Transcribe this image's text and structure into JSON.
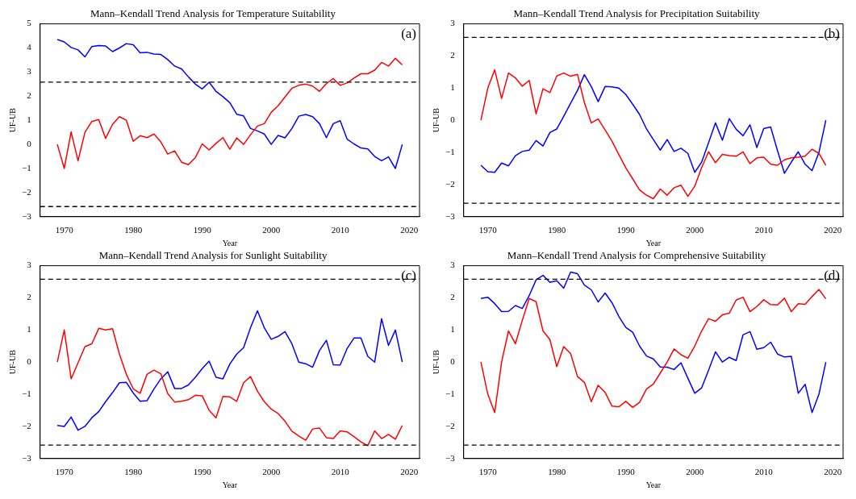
{
  "chart_data": [
    {
      "type": "line",
      "title": "Mann–Kendall Trend Analysis for Temperature Suitability",
      "xlabel": "Year",
      "ylabel": "UF-UB",
      "annotations": [
        "(a)"
      ],
      "grid": false,
      "legend": false,
      "marker": "none",
      "line_style": "solid",
      "x": [
        1969,
        1970,
        1971,
        1972,
        1973,
        1974,
        1975,
        1976,
        1977,
        1978,
        1979,
        1980,
        1981,
        1982,
        1983,
        1984,
        1985,
        1986,
        1987,
        1988,
        1989,
        1990,
        1991,
        1992,
        1993,
        1994,
        1995,
        1996,
        1997,
        1998,
        1999,
        2000,
        2001,
        2002,
        2003,
        2004,
        2005,
        2006,
        2007,
        2008,
        2009,
        2010,
        2011,
        2012,
        2013,
        2014,
        2015,
        2016,
        2017,
        2018,
        2019
      ],
      "xlim": [
        1966.5,
        2021.5
      ],
      "xticks": [
        1970,
        1980,
        1990,
        2000,
        2010,
        2020
      ],
      "ylim": [
        -3,
        5
      ],
      "yticks": [
        -3,
        -2,
        -1,
        0,
        1,
        2,
        3,
        4,
        5
      ],
      "series": [
        {
          "color": "#ff0000",
          "values": [
            0,
            -1,
            0.52,
            -0.68,
            0.5,
            0.95,
            1.03,
            0.25,
            0.83,
            1.15,
            1.0,
            0.13,
            0.36,
            0.28,
            0.43,
            0.1,
            -0.4,
            -0.27,
            -0.74,
            -0.84,
            -0.55,
            0.02,
            -0.23,
            0.04,
            0.28,
            -0.2,
            0.27,
            0,
            0.4,
            0.76,
            0.86,
            1.33,
            1.6,
            1.97,
            2.33,
            2.45,
            2.5,
            2.42,
            2.2,
            2.52,
            2.73,
            2.45,
            2.55,
            2.75,
            2.93,
            2.93,
            3.08,
            3.4,
            3.25,
            3.57,
            3.3
          ]
        },
        {
          "color": "#0000ff",
          "values": [
            4.35,
            4.25,
            4.02,
            3.92,
            3.63,
            4.06,
            4.1,
            4.08,
            3.85,
            4.0,
            4.18,
            4.13,
            3.8,
            3.82,
            3.75,
            3.73,
            3.52,
            3.25,
            3.13,
            2.8,
            2.5,
            2.3,
            2.58,
            2.2,
            1.98,
            1.73,
            1.25,
            1.18,
            0.66,
            0.56,
            0.43,
            0,
            0.37,
            0.27,
            0.66,
            1.17,
            1.24,
            1.15,
            0.86,
            0.28,
            0.86,
            0.98,
            0.22,
            0.02,
            -0.15,
            -0.19,
            -0.5,
            -0.68,
            -0.52,
            -1,
            0
          ]
        }
      ],
      "ref_lines": [
        {
          "axis": "y",
          "value": 2.58,
          "color": "#000000",
          "line_style": "dashed"
        },
        {
          "axis": "y",
          "value": -2.58,
          "color": "#000000",
          "line_style": "dashed"
        }
      ]
    },
    {
      "type": "line",
      "title": "Mann–Kendall Trend Analysis for Precipitation Suitability",
      "xlabel": "Year",
      "ylabel": "UF-UB",
      "annotations": [
        "(b)"
      ],
      "grid": false,
      "legend": false,
      "marker": "none",
      "line_style": "solid",
      "x": [
        1969,
        1970,
        1971,
        1972,
        1973,
        1974,
        1975,
        1976,
        1977,
        1978,
        1979,
        1980,
        1981,
        1982,
        1983,
        1984,
        1985,
        1986,
        1987,
        1988,
        1989,
        1990,
        1991,
        1992,
        1993,
        1994,
        1995,
        1996,
        1997,
        1998,
        1999,
        2000,
        2001,
        2002,
        2003,
        2004,
        2005,
        2006,
        2007,
        2008,
        2009,
        2010,
        2011,
        2012,
        2013,
        2014,
        2015,
        2016,
        2017,
        2018,
        2019
      ],
      "xlim": [
        1966.5,
        2021.5
      ],
      "xticks": [
        1970,
        1980,
        1990,
        2000,
        2010,
        2020
      ],
      "ylim": [
        -3,
        3
      ],
      "yticks": [
        -3,
        -2,
        -1,
        0,
        1,
        2,
        3
      ],
      "series": [
        {
          "color": "#ff0000",
          "values": [
            0,
            1.0,
            1.57,
            0.68,
            1.47,
            1.32,
            1.06,
            1.24,
            0.2,
            0.98,
            0.86,
            1.38,
            1.47,
            1.37,
            1.43,
            0.55,
            -0.08,
            0.04,
            -0.3,
            -0.65,
            -1.07,
            -1.48,
            -1.82,
            -2.17,
            -2.33,
            -2.44,
            -2.14,
            -2.33,
            -2.1,
            -2.02,
            -2.37,
            -2.05,
            -1.47,
            -0.98,
            -1.32,
            -1.06,
            -1.1,
            -1.12,
            -0.98,
            -1.35,
            -1.17,
            -1.15,
            -1.37,
            -1.4,
            -1.23,
            -1.17,
            -1.15,
            -1.12,
            -0.9,
            -1.03,
            -1.4
          ]
        },
        {
          "color": "#0000ff",
          "values": [
            -1.4,
            -1.6,
            -1.62,
            -1.33,
            -1.42,
            -1.1,
            -0.97,
            -0.93,
            -0.63,
            -0.8,
            -0.38,
            -0.27,
            0.12,
            0.53,
            0.93,
            1.42,
            1.05,
            0.58,
            1.05,
            1.04,
            1.0,
            0.8,
            0.5,
            0.18,
            -0.27,
            -0.6,
            -0.93,
            -0.6,
            -0.97,
            -0.87,
            -1.03,
            -1.62,
            -1.3,
            -0.7,
            -0.08,
            -0.62,
            0.05,
            -0.28,
            -0.48,
            -0.14,
            -0.85,
            -0.26,
            -0.21,
            -0.95,
            -1.65,
            -1.3,
            -0.98,
            -1.37,
            -1.57,
            -1.0,
            0
          ]
        }
      ],
      "ref_lines": [
        {
          "axis": "y",
          "value": 2.58,
          "color": "#000000",
          "line_style": "dashed"
        },
        {
          "axis": "y",
          "value": -2.58,
          "color": "#000000",
          "line_style": "dashed"
        }
      ]
    },
    {
      "type": "line",
      "title": "Mann–Kendall Trend Analysis for Sunlight Suitability",
      "xlabel": "Year",
      "ylabel": "UF-UB",
      "annotations": [
        "(c)"
      ],
      "grid": false,
      "legend": false,
      "marker": "none",
      "line_style": "solid",
      "x": [
        1969,
        1970,
        1971,
        1972,
        1973,
        1974,
        1975,
        1976,
        1977,
        1978,
        1979,
        1980,
        1981,
        1982,
        1983,
        1984,
        1985,
        1986,
        1987,
        1988,
        1989,
        1990,
        1991,
        1992,
        1993,
        1994,
        1995,
        1996,
        1997,
        1998,
        1999,
        2000,
        2001,
        2002,
        2003,
        2004,
        2005,
        2006,
        2007,
        2008,
        2009,
        2010,
        2011,
        2012,
        2013,
        2014,
        2015,
        2016,
        2017,
        2018,
        2019
      ],
      "xlim": [
        1966.5,
        2021.5
      ],
      "xticks": [
        1970,
        1980,
        1990,
        2000,
        2010,
        2020
      ],
      "ylim": [
        -3,
        3
      ],
      "yticks": [
        -3,
        -2,
        -1,
        0,
        1,
        2,
        3
      ],
      "series": [
        {
          "color": "#ff0000",
          "values": [
            0,
            1.0,
            -0.52,
            -0.02,
            0.48,
            0.57,
            1.05,
            1.0,
            1.04,
            0.25,
            -0.38,
            -0.83,
            -0.97,
            -0.38,
            -0.25,
            -0.36,
            -0.98,
            -1.24,
            -1.22,
            -1.17,
            -1.03,
            -1.05,
            -1.5,
            -1.73,
            -1.07,
            -1.08,
            -1.22,
            -0.64,
            -0.45,
            -0.9,
            -1.23,
            -1.46,
            -1.6,
            -1.84,
            -2.15,
            -2.3,
            -2.43,
            -2.08,
            -2.05,
            -2.35,
            -2.38,
            -2.14,
            -2.17,
            -2.32,
            -2.48,
            -2.6,
            -2.14,
            -2.38,
            -2.25,
            -2.4,
            -1.97
          ]
        },
        {
          "color": "#0000ff",
          "values": [
            -1.97,
            -2.0,
            -1.71,
            -2.12,
            -2.0,
            -1.73,
            -1.54,
            -1.23,
            -0.95,
            -0.64,
            -0.63,
            -0.96,
            -1.22,
            -1.2,
            -0.84,
            -0.52,
            -0.3,
            -0.82,
            -0.82,
            -0.71,
            -0.47,
            -0.2,
            0.03,
            -0.47,
            -0.52,
            -0.06,
            0.25,
            0.45,
            1.07,
            1.6,
            1.07,
            0.71,
            0.8,
            0.95,
            0.57,
            0,
            -0.05,
            -0.16,
            0.36,
            0.68,
            -0.08,
            -0.09,
            0.42,
            0.75,
            0.75,
            0.18,
            0,
            1.35,
            0.52,
            1.0,
            0
          ]
        }
      ],
      "ref_lines": [
        {
          "axis": "y",
          "value": 2.58,
          "color": "#000000",
          "line_style": "dashed"
        },
        {
          "axis": "y",
          "value": -2.58,
          "color": "#000000",
          "line_style": "dashed"
        }
      ]
    },
    {
      "type": "line",
      "title": "Mann–Kendall Trend Analysis for Comprehensive Suitability",
      "xlabel": "Year",
      "ylabel": "UF-UB",
      "annotations": [
        "(d)"
      ],
      "grid": false,
      "legend": false,
      "marker": "none",
      "line_style": "solid",
      "x": [
        1969,
        1970,
        1971,
        1972,
        1973,
        1974,
        1975,
        1976,
        1977,
        1978,
        1979,
        1980,
        1981,
        1982,
        1983,
        1984,
        1985,
        1986,
        1987,
        1988,
        1989,
        1990,
        1991,
        1992,
        1993,
        1994,
        1995,
        1996,
        1997,
        1998,
        1999,
        2000,
        2001,
        2002,
        2003,
        2004,
        2005,
        2006,
        2007,
        2008,
        2009,
        2010,
        2011,
        2012,
        2013,
        2014,
        2015,
        2016,
        2017,
        2018,
        2019
      ],
      "xlim": [
        1966.5,
        2021.5
      ],
      "xticks": [
        1970,
        1980,
        1990,
        2000,
        2010,
        2020
      ],
      "ylim": [
        -3,
        3
      ],
      "yticks": [
        -3,
        -2,
        -1,
        0,
        1,
        2,
        3
      ],
      "series": [
        {
          "color": "#ff0000",
          "values": [
            0,
            -1.0,
            -1.57,
            0,
            0.97,
            0.57,
            1.3,
            1.98,
            1.88,
            0.97,
            0.7,
            -0.14,
            0.48,
            0.27,
            -0.45,
            -0.63,
            -1.23,
            -0.72,
            -0.94,
            -1.37,
            -1.39,
            -1.22,
            -1.41,
            -1.25,
            -0.84,
            -0.68,
            -0.34,
            0,
            0.41,
            0.23,
            0.12,
            0.5,
            0.97,
            1.35,
            1.27,
            1.47,
            1.52,
            1.93,
            2.02,
            1.57,
            1.73,
            1.94,
            1.79,
            1.78,
            1.99,
            1.57,
            1.82,
            1.8,
            2.04,
            2.26,
            1.97
          ]
        },
        {
          "color": "#0000ff",
          "values": [
            1.98,
            2.02,
            1.82,
            1.57,
            1.58,
            1.76,
            1.67,
            2.07,
            2.56,
            2.7,
            2.48,
            2.53,
            2.3,
            2.8,
            2.75,
            2.4,
            2.25,
            1.87,
            2.15,
            1.85,
            1.42,
            1.08,
            0.93,
            0.5,
            0.19,
            0.1,
            -0.15,
            -0.16,
            -0.23,
            -0.02,
            -0.5,
            -0.97,
            -0.8,
            -0.25,
            0.32,
            0,
            0.15,
            0.05,
            0.85,
            0.95,
            0.4,
            0.45,
            0.62,
            0.25,
            0.16,
            0.18,
            -0.97,
            -0.69,
            -1.57,
            -1.0,
            0
          ]
        }
      ],
      "ref_lines": [
        {
          "axis": "y",
          "value": 2.58,
          "color": "#000000",
          "line_style": "dashed"
        },
        {
          "axis": "y",
          "value": -2.58,
          "color": "#000000",
          "line_style": "dashed"
        }
      ]
    }
  ]
}
